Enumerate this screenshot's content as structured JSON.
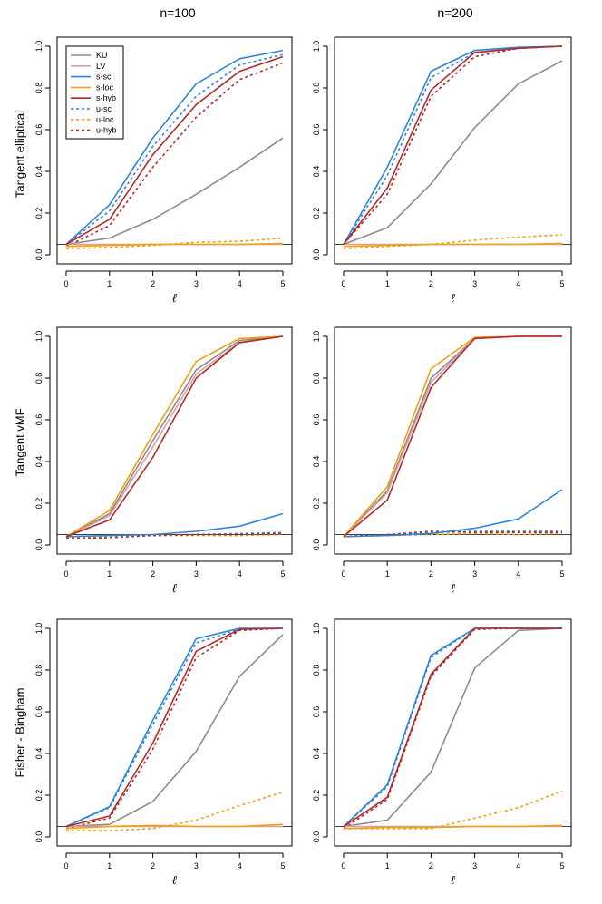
{
  "column_titles": [
    "n=100",
    "n=200"
  ],
  "row_labels": [
    "Tangent elliptical",
    "Tangent vMF",
    "Fisher - Bingham"
  ],
  "series_styles": {
    "KU": {
      "color": "#8c8c8c",
      "dashed": false
    },
    "LV": {
      "color": "#d4a0a8",
      "dashed": false
    },
    "s-sc": {
      "color": "#2f86d8",
      "dashed": false
    },
    "s-loc": {
      "color": "#f0a010",
      "dashed": false
    },
    "s-hyb": {
      "color": "#b22a2a",
      "dashed": false
    },
    "u-sc": {
      "color": "#2f86d8",
      "dashed": true
    },
    "u-loc": {
      "color": "#f0a010",
      "dashed": true
    },
    "u-hyb": {
      "color": "#b22a2a",
      "dashed": true
    }
  },
  "legend_entries": [
    "KU",
    "LV",
    "s-sc",
    "s-loc",
    "s-hyb",
    "u-sc",
    "u-loc",
    "u-hyb"
  ],
  "reference_level": 0.05,
  "chart_data": [
    {
      "type": "line",
      "row": "Tangent elliptical",
      "column": "n=100",
      "x": [
        0,
        1,
        2,
        3,
        4,
        5
      ],
      "xlabel": "ℓ",
      "ylabel": "",
      "xticks": [
        "0",
        "1",
        "2",
        "3",
        "4",
        "5"
      ],
      "yticks": [
        "0.0",
        "0.2",
        "0.4",
        "0.6",
        "0.8",
        "1.0"
      ],
      "ylim": [
        0,
        1
      ],
      "legend": "top-left",
      "series": [
        {
          "name": "KU",
          "values": [
            0.05,
            0.08,
            0.17,
            0.29,
            0.42,
            0.56
          ]
        },
        {
          "name": "LV",
          "values": [
            0.05,
            0.05,
            0.05,
            0.05,
            0.05,
            0.05
          ]
        },
        {
          "name": "s-sc",
          "values": [
            0.05,
            0.24,
            0.56,
            0.82,
            0.94,
            0.98
          ]
        },
        {
          "name": "s-loc",
          "values": [
            0.04,
            0.045,
            0.05,
            0.05,
            0.05,
            0.055
          ]
        },
        {
          "name": "s-hyb",
          "values": [
            0.05,
            0.17,
            0.48,
            0.72,
            0.88,
            0.95
          ]
        },
        {
          "name": "u-sc",
          "values": [
            0.05,
            0.21,
            0.52,
            0.76,
            0.91,
            0.96
          ]
        },
        {
          "name": "u-loc",
          "values": [
            0.03,
            0.035,
            0.045,
            0.06,
            0.065,
            0.08
          ]
        },
        {
          "name": "u-hyb",
          "values": [
            0.04,
            0.14,
            0.42,
            0.66,
            0.84,
            0.92
          ]
        }
      ]
    },
    {
      "type": "line",
      "row": "Tangent elliptical",
      "column": "n=200",
      "x": [
        0,
        1,
        2,
        3,
        4,
        5
      ],
      "xlabel": "ℓ",
      "ylabel": "",
      "xticks": [
        "0",
        "1",
        "2",
        "3",
        "4",
        "5"
      ],
      "yticks": [
        "0.0",
        "0.2",
        "0.4",
        "0.6",
        "0.8",
        "1.0"
      ],
      "ylim": [
        0,
        1
      ],
      "series": [
        {
          "name": "KU",
          "values": [
            0.05,
            0.13,
            0.34,
            0.61,
            0.82,
            0.93
          ]
        },
        {
          "name": "LV",
          "values": [
            0.05,
            0.05,
            0.05,
            0.05,
            0.05,
            0.05
          ]
        },
        {
          "name": "s-sc",
          "values": [
            0.05,
            0.42,
            0.88,
            0.98,
            0.995,
            1.0
          ]
        },
        {
          "name": "s-loc",
          "values": [
            0.04,
            0.045,
            0.05,
            0.05,
            0.05,
            0.055
          ]
        },
        {
          "name": "s-hyb",
          "values": [
            0.05,
            0.32,
            0.79,
            0.97,
            0.99,
            1.0
          ]
        },
        {
          "name": "u-sc",
          "values": [
            0.05,
            0.38,
            0.85,
            0.97,
            0.99,
            1.0
          ]
        },
        {
          "name": "u-loc",
          "values": [
            0.03,
            0.04,
            0.05,
            0.07,
            0.085,
            0.095
          ]
        },
        {
          "name": "u-hyb",
          "values": [
            0.05,
            0.29,
            0.76,
            0.95,
            0.99,
            1.0
          ]
        }
      ]
    },
    {
      "type": "line",
      "row": "Tangent vMF",
      "column": "n=100",
      "x": [
        0,
        1,
        2,
        3,
        4,
        5
      ],
      "xlabel": "ℓ",
      "ylabel": "",
      "xticks": [
        "0",
        "1",
        "2",
        "3",
        "4",
        "5"
      ],
      "yticks": [
        "0.0",
        "0.2",
        "0.4",
        "0.6",
        "0.8",
        "1.0"
      ],
      "ylim": [
        0,
        1
      ],
      "series": [
        {
          "name": "KU",
          "values": [
            0.04,
            0.15,
            0.5,
            0.84,
            0.98,
            1.0
          ]
        },
        {
          "name": "LV",
          "values": [
            0.04,
            0.14,
            0.47,
            0.82,
            0.97,
            1.0
          ]
        },
        {
          "name": "s-sc",
          "values": [
            0.04,
            0.045,
            0.05,
            0.065,
            0.09,
            0.15
          ]
        },
        {
          "name": "s-loc",
          "values": [
            0.04,
            0.165,
            0.53,
            0.88,
            0.99,
            1.0
          ]
        },
        {
          "name": "s-hyb",
          "values": [
            0.04,
            0.12,
            0.42,
            0.8,
            0.97,
            1.0
          ]
        },
        {
          "name": "u-sc",
          "values": [
            0.035,
            0.04,
            0.045,
            0.05,
            0.055,
            0.06
          ]
        },
        {
          "name": "u-loc",
          "values": [
            0.04,
            0.04,
            0.045,
            0.045,
            0.045,
            0.05
          ]
        },
        {
          "name": "u-hyb",
          "values": [
            0.03,
            0.035,
            0.045,
            0.05,
            0.05,
            0.055
          ]
        }
      ]
    },
    {
      "type": "line",
      "row": "Tangent vMF",
      "column": "n=200",
      "x": [
        0,
        1,
        2,
        3,
        4,
        5
      ],
      "xlabel": "ℓ",
      "ylabel": "",
      "xticks": [
        "0",
        "1",
        "2",
        "3",
        "4",
        "5"
      ],
      "yticks": [
        "0.0",
        "0.2",
        "0.4",
        "0.6",
        "0.8",
        "1.0"
      ],
      "ylim": [
        0,
        1
      ],
      "series": [
        {
          "name": "KU",
          "values": [
            0.04,
            0.26,
            0.8,
            0.99,
            1.0,
            1.0
          ]
        },
        {
          "name": "LV",
          "values": [
            0.04,
            0.25,
            0.78,
            0.99,
            1.0,
            1.0
          ]
        },
        {
          "name": "s-sc",
          "values": [
            0.04,
            0.045,
            0.055,
            0.08,
            0.125,
            0.265
          ]
        },
        {
          "name": "s-loc",
          "values": [
            0.04,
            0.28,
            0.845,
            0.995,
            1.0,
            1.0
          ]
        },
        {
          "name": "s-hyb",
          "values": [
            0.04,
            0.215,
            0.755,
            0.99,
            1.0,
            1.0
          ]
        },
        {
          "name": "u-sc",
          "values": [
            0.04,
            0.05,
            0.06,
            0.065,
            0.065,
            0.065
          ]
        },
        {
          "name": "u-loc",
          "values": [
            0.04,
            0.045,
            0.05,
            0.055,
            0.05,
            0.055
          ]
        },
        {
          "name": "u-hyb",
          "values": [
            0.04,
            0.05,
            0.065,
            0.06,
            0.06,
            0.06
          ]
        }
      ]
    },
    {
      "type": "line",
      "row": "Fisher - Bingham",
      "column": "n=100",
      "x": [
        0,
        1,
        2,
        3,
        4,
        5
      ],
      "xlabel": "ℓ",
      "ylabel": "",
      "xticks": [
        "0",
        "1",
        "2",
        "3",
        "4",
        "5"
      ],
      "yticks": [
        "0.0",
        "0.2",
        "0.4",
        "0.6",
        "0.8",
        "1.0"
      ],
      "ylim": [
        0,
        1
      ],
      "series": [
        {
          "name": "KU",
          "values": [
            0.05,
            0.06,
            0.17,
            0.41,
            0.77,
            0.97
          ]
        },
        {
          "name": "LV",
          "values": [
            0.05,
            0.05,
            0.05,
            0.05,
            0.05,
            0.05
          ]
        },
        {
          "name": "s-sc",
          "values": [
            0.05,
            0.145,
            0.56,
            0.95,
            1.0,
            1.0
          ]
        },
        {
          "name": "s-loc",
          "values": [
            0.04,
            0.05,
            0.055,
            0.05,
            0.05,
            0.06
          ]
        },
        {
          "name": "s-hyb",
          "values": [
            0.05,
            0.1,
            0.45,
            0.89,
            0.995,
            1.0
          ]
        },
        {
          "name": "u-sc",
          "values": [
            0.05,
            0.14,
            0.54,
            0.93,
            0.995,
            1.0
          ]
        },
        {
          "name": "u-loc",
          "values": [
            0.03,
            0.03,
            0.04,
            0.08,
            0.15,
            0.215
          ]
        },
        {
          "name": "u-hyb",
          "values": [
            0.04,
            0.09,
            0.42,
            0.86,
            0.99,
            1.0
          ]
        }
      ]
    },
    {
      "type": "line",
      "row": "Fisher - Bingham",
      "column": "n=200",
      "x": [
        0,
        1,
        2,
        3,
        4,
        5
      ],
      "xlabel": "ℓ",
      "ylabel": "",
      "xticks": [
        "0",
        "1",
        "2",
        "3",
        "4",
        "5"
      ],
      "yticks": [
        "0.0",
        "0.2",
        "0.4",
        "0.6",
        "0.8",
        "1.0"
      ],
      "ylim": [
        0,
        1
      ],
      "series": [
        {
          "name": "KU",
          "values": [
            0.05,
            0.08,
            0.31,
            0.81,
            0.99,
            1.0
          ]
        },
        {
          "name": "LV",
          "values": [
            0.05,
            0.05,
            0.05,
            0.05,
            0.05,
            0.05
          ]
        },
        {
          "name": "s-sc",
          "values": [
            0.05,
            0.25,
            0.87,
            1.0,
            1.0,
            1.0
          ]
        },
        {
          "name": "s-loc",
          "values": [
            0.04,
            0.045,
            0.045,
            0.05,
            0.05,
            0.055
          ]
        },
        {
          "name": "s-hyb",
          "values": [
            0.05,
            0.19,
            0.78,
            1.0,
            1.0,
            1.0
          ]
        },
        {
          "name": "u-sc",
          "values": [
            0.05,
            0.24,
            0.86,
            1.0,
            1.0,
            1.0
          ]
        },
        {
          "name": "u-loc",
          "values": [
            0.04,
            0.04,
            0.04,
            0.09,
            0.14,
            0.22
          ]
        },
        {
          "name": "u-hyb",
          "values": [
            0.04,
            0.18,
            0.77,
            0.995,
            1.0,
            1.0
          ]
        }
      ]
    }
  ]
}
